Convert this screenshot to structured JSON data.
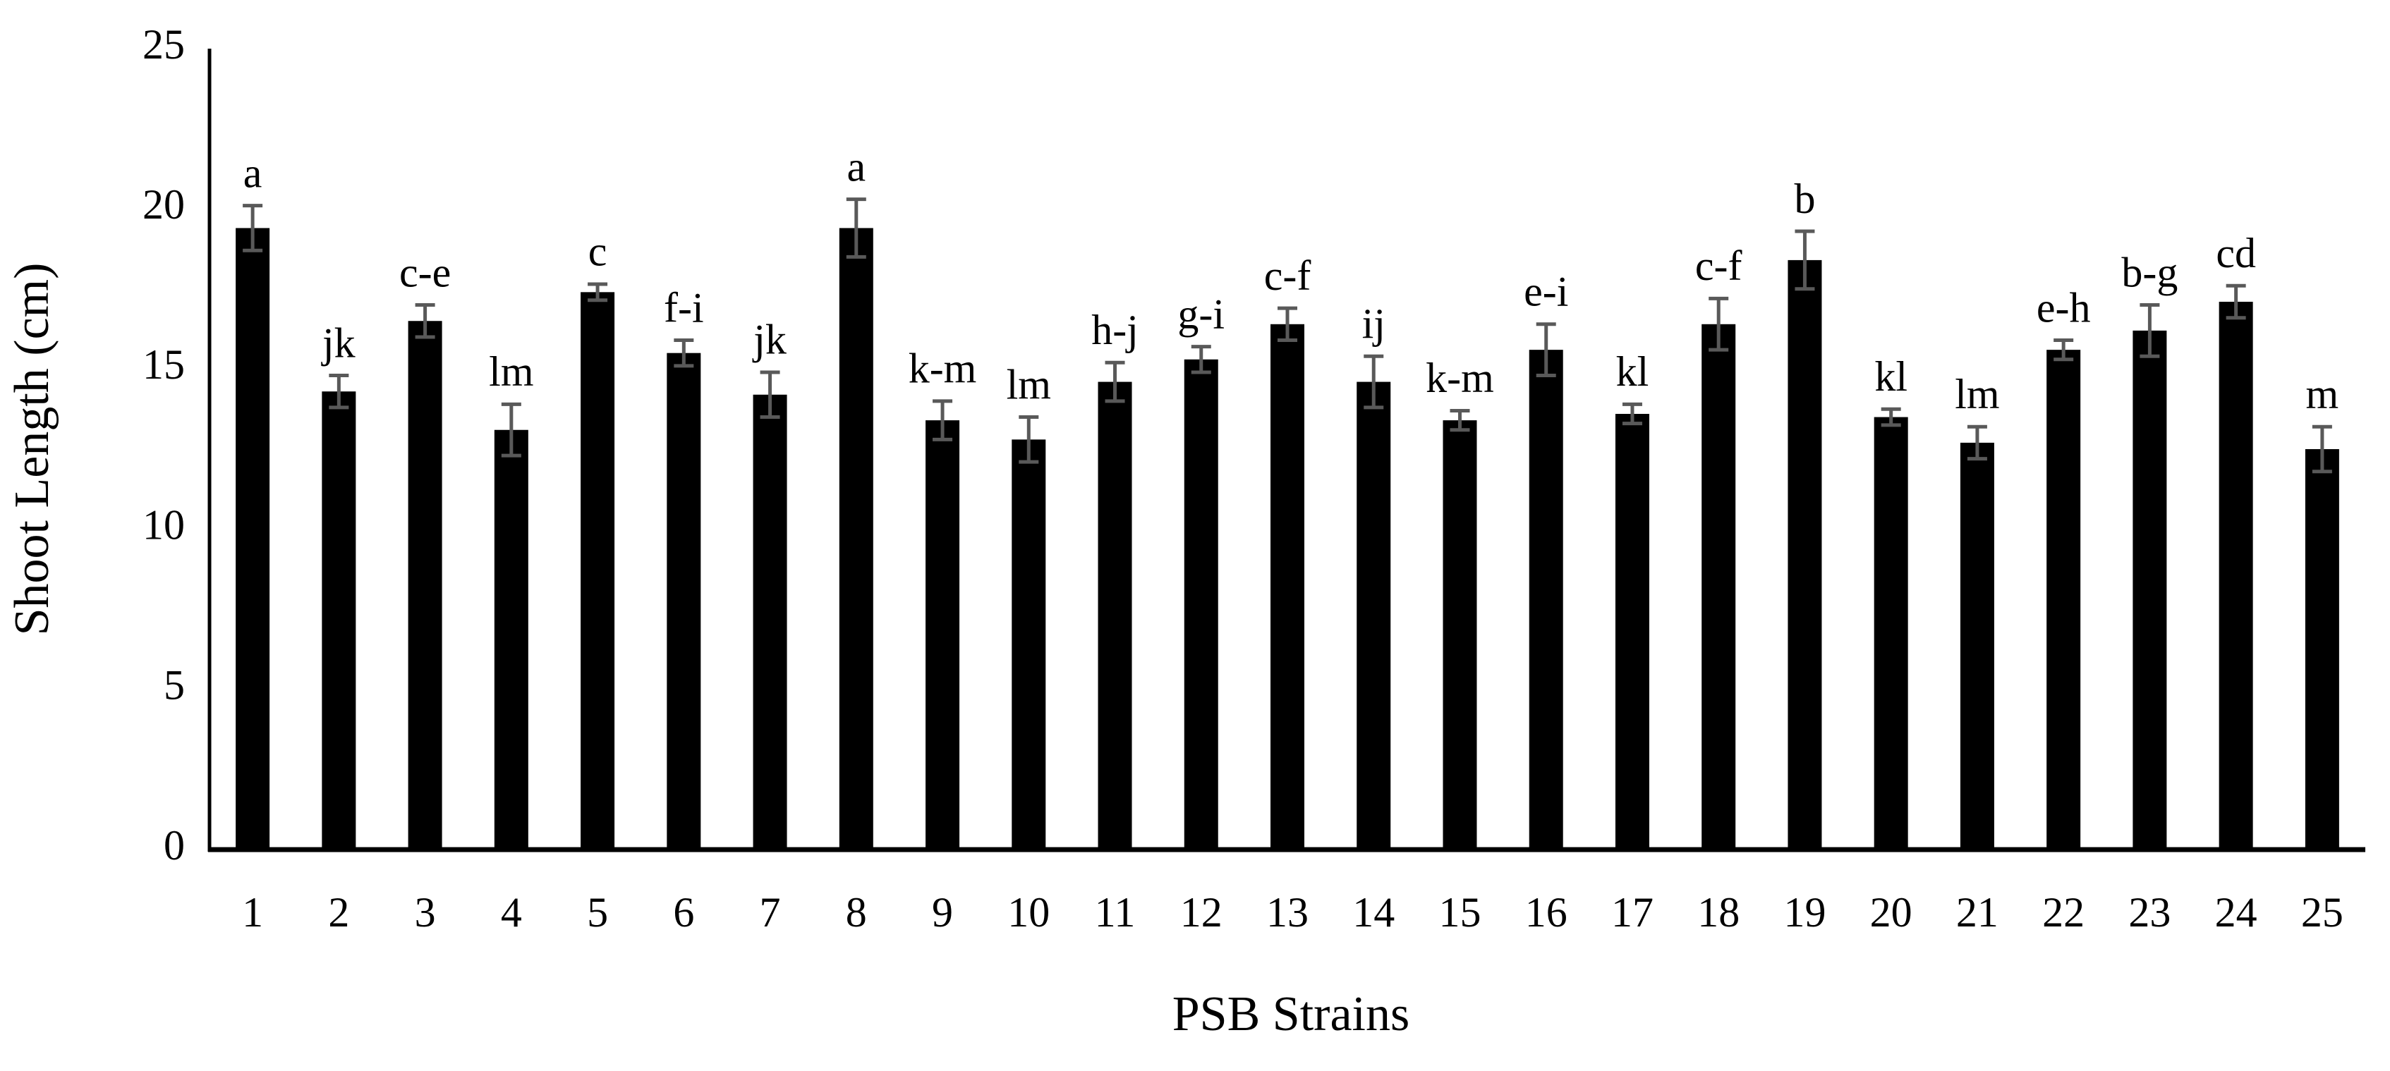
{
  "chart_data": {
    "type": "bar",
    "x_label": "PSB Strains",
    "y_label": "Shoot Length (cm)",
    "categories": [
      "1",
      "2",
      "3",
      "4",
      "5",
      "6",
      "7",
      "8",
      "9",
      "10",
      "11",
      "12",
      "13",
      "14",
      "15",
      "16",
      "17",
      "18",
      "19",
      "20",
      "21",
      "22",
      "23",
      "24",
      "25"
    ],
    "values": [
      19.4,
      14.3,
      16.5,
      13.1,
      17.4,
      15.5,
      14.2,
      19.4,
      13.4,
      12.8,
      14.6,
      15.3,
      16.4,
      14.6,
      13.4,
      15.6,
      13.6,
      16.4,
      18.4,
      13.5,
      12.7,
      15.6,
      16.2,
      17.1,
      12.5
    ],
    "errors": [
      0.7,
      0.5,
      0.5,
      0.8,
      0.25,
      0.4,
      0.7,
      0.9,
      0.6,
      0.7,
      0.6,
      0.4,
      0.5,
      0.8,
      0.3,
      0.8,
      0.3,
      0.8,
      0.9,
      0.25,
      0.5,
      0.3,
      0.8,
      0.5,
      0.7
    ],
    "significance_labels": [
      "a",
      "jk",
      "c-e",
      "lm",
      "c",
      "f-i",
      "jk",
      "a",
      "k-m",
      "lm",
      "h-j",
      "g-i",
      "c-f",
      "ij",
      "k-m",
      "e-i",
      "kl",
      "c-f",
      "b",
      "kl",
      "lm",
      "e-h",
      "b-g",
      "cd",
      "m"
    ],
    "color": "#000000",
    "error_color": "#595959",
    "ylim": [
      0,
      25
    ],
    "yticks": [
      0,
      5,
      10,
      15,
      20,
      25
    ],
    "grid": false
  }
}
